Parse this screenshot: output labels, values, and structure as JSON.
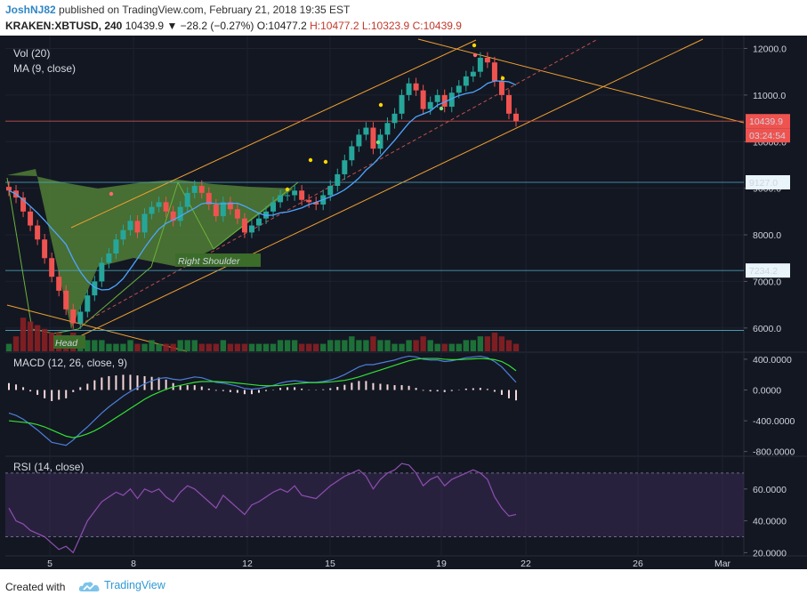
{
  "header": {
    "author": "JoshNJ82",
    "published_text": "published on TradingView.com, February 21, 2018 19:35 EST",
    "symbol": "KRAKEN:XBTUSD, 240",
    "last": "10439.9",
    "change": "▼ −28.2 (−0.27%)",
    "ohlc_o": "O:10477.2",
    "ohlc_h": "H:10477.2",
    "ohlc_l": "L:10323.9",
    "ohlc_c": "C:10439.9"
  },
  "footer": {
    "created_with": "Created with",
    "brand": "TradingView"
  },
  "colors": {
    "bg": "#131722",
    "up": "#26a69a",
    "down": "#ef5350",
    "ma": "#4da6ff",
    "orange": "#f0a030",
    "green_area": "#5a8c3a",
    "macd": "#4d7fd8",
    "signal": "#33e033",
    "rsi": "#8e4fb0"
  },
  "chart_data": [
    {
      "type": "candlestick",
      "pane": "price",
      "legend": [
        "Vol (20)",
        "MA (9, close)"
      ],
      "y_ticks": [
        6000,
        7000,
        8000,
        9000,
        10000,
        11000,
        12000
      ],
      "y_tick_labels": [
        "6000.0",
        "7000.0",
        "8000.0",
        "9000.0",
        "10000.0",
        "11000.0",
        "12000.0"
      ],
      "ylim": [
        5500,
        12200
      ],
      "x_ticks": [
        "5",
        "8",
        "12",
        "15",
        "19",
        "22",
        "26",
        "Mar"
      ],
      "price_labels": [
        "10439.9",
        "03:24:54",
        "9127.0",
        "7234.2"
      ],
      "horizontal_levels": [
        9127.0,
        7234.2,
        5950,
        10440
      ],
      "annotations": [
        "Head",
        "Right Shoulder"
      ],
      "closes": [
        8950,
        8800,
        8500,
        8200,
        7900,
        7500,
        7100,
        6800,
        6400,
        6100,
        6350,
        6700,
        7000,
        7400,
        7600,
        7900,
        8100,
        8300,
        8050,
        8450,
        8600,
        8700,
        8500,
        8300,
        8600,
        8900,
        9050,
        8900,
        8650,
        8400,
        8700,
        8550,
        8350,
        8050,
        8200,
        8350,
        8500,
        8700,
        8850,
        8850,
        8950,
        8750,
        8700,
        8650,
        8850,
        9050,
        9300,
        9600,
        9900,
        10150,
        10300,
        9850,
        10150,
        10400,
        10600,
        11000,
        11250,
        11100,
        10700,
        10850,
        11000,
        10750,
        11050,
        11200,
        11400,
        11500,
        11800,
        11700,
        11300,
        11000,
        10600,
        10440
      ]
    },
    {
      "type": "bar",
      "pane": "volume",
      "title": "Vol (20)",
      "values": [
        2,
        4,
        9,
        8,
        7,
        6,
        5,
        5,
        4,
        5,
        4,
        3,
        3,
        3,
        2,
        2,
        2,
        3,
        2,
        2,
        3,
        2,
        2,
        2,
        3,
        3,
        3,
        2,
        2,
        2,
        3,
        2,
        2,
        2,
        2,
        2,
        2,
        2,
        3,
        3,
        3,
        2,
        2,
        2,
        2,
        3,
        3,
        3,
        4,
        3,
        3,
        4,
        3,
        3,
        2,
        2,
        3,
        3,
        4,
        3,
        2,
        2,
        2,
        2,
        3,
        3,
        4,
        4,
        5,
        4,
        3,
        2
      ]
    },
    {
      "type": "line",
      "pane": "macd",
      "legend": [
        "MACD (12, 26, close, 9)"
      ],
      "y_ticks": [
        400,
        0,
        -400,
        -800
      ],
      "y_tick_labels": [
        "400.0000",
        "0.0000",
        "-400.0000",
        "-800.0000"
      ],
      "ylim": [
        -850,
        480
      ],
      "series": [
        {
          "name": "MACD",
          "values": [
            -300,
            -330,
            -380,
            -450,
            -520,
            -600,
            -680,
            -700,
            -720,
            -650,
            -560,
            -480,
            -390,
            -300,
            -220,
            -150,
            -80,
            -20,
            30,
            80,
            120,
            150,
            160,
            140,
            130,
            150,
            170,
            160,
            130,
            100,
            90,
            70,
            50,
            20,
            10,
            20,
            40,
            60,
            90,
            110,
            120,
            110,
            100,
            100,
            110,
            130,
            160,
            200,
            250,
            300,
            330,
            330,
            350,
            370,
            390,
            420,
            440,
            430,
            400,
            390,
            390,
            370,
            380,
            400,
            420,
            430,
            440,
            420,
            370,
            300,
            200,
            100
          ]
        },
        {
          "name": "Signal",
          "values": [
            -400,
            -410,
            -420,
            -430,
            -450,
            -480,
            -520,
            -560,
            -600,
            -620,
            -600,
            -570,
            -530,
            -480,
            -420,
            -360,
            -300,
            -240,
            -180,
            -120,
            -70,
            -30,
            10,
            40,
            60,
            80,
            100,
            110,
            110,
            110,
            105,
            100,
            90,
            80,
            70,
            60,
            55,
            55,
            60,
            70,
            80,
            90,
            95,
            95,
            100,
            105,
            115,
            125,
            145,
            170,
            200,
            230,
            260,
            290,
            320,
            350,
            380,
            400,
            410,
            410,
            410,
            400,
            395,
            395,
            400,
            405,
            410,
            405,
            395,
            370,
            320,
            250
          ]
        }
      ]
    },
    {
      "type": "line",
      "pane": "rsi",
      "legend": [
        "RSI (14, close)"
      ],
      "y_ticks": [
        60,
        40,
        20
      ],
      "y_tick_labels": [
        "60.0000",
        "40.0000",
        "20.0000"
      ],
      "band": [
        30,
        70
      ],
      "ylim": [
        18,
        80
      ],
      "series": [
        {
          "name": "RSI",
          "values": [
            48,
            40,
            38,
            34,
            32,
            30,
            26,
            22,
            24,
            20,
            30,
            40,
            46,
            52,
            55,
            58,
            56,
            60,
            54,
            60,
            58,
            60,
            55,
            52,
            58,
            62,
            60,
            56,
            52,
            48,
            56,
            52,
            48,
            44,
            50,
            52,
            55,
            58,
            60,
            58,
            62,
            56,
            55,
            54,
            58,
            62,
            65,
            68,
            70,
            72,
            68,
            60,
            66,
            70,
            72,
            76,
            75,
            70,
            62,
            66,
            68,
            62,
            66,
            68,
            70,
            72,
            70,
            66,
            55,
            48,
            43,
            44
          ]
        }
      ]
    }
  ]
}
